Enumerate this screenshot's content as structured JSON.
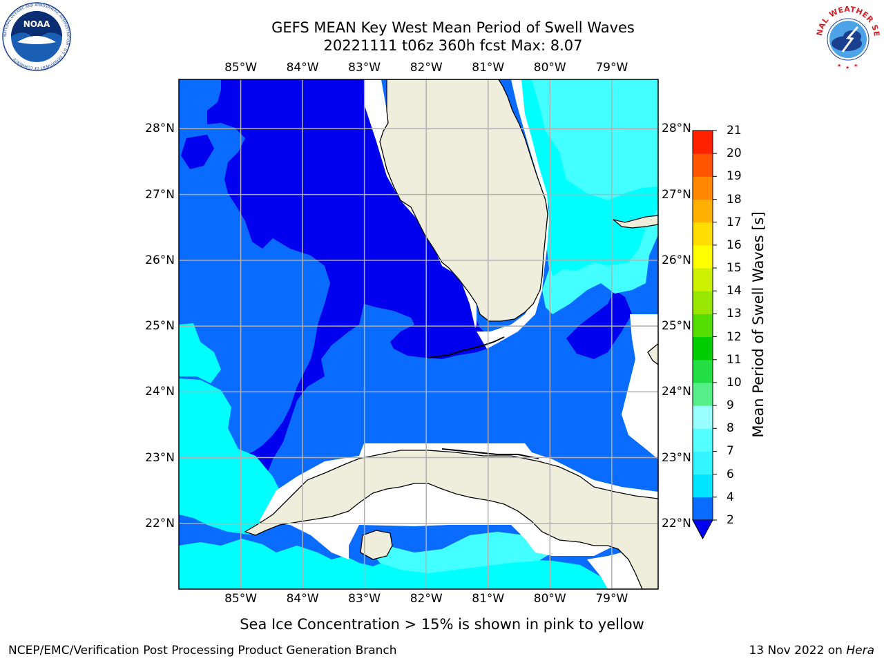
{
  "title": {
    "line1": "GEFS MEAN Key West Mean Period of Swell Waves",
    "line2": "20221111 t06z 360h fcst   Max: 8.07"
  },
  "map": {
    "lon_range": [
      -86.0,
      -78.25
    ],
    "lat_range": [
      21.0,
      28.75
    ],
    "lon_ticks": [
      "85°W",
      "84°W",
      "83°W",
      "82°W",
      "81°W",
      "80°W",
      "79°W"
    ],
    "lat_ticks": [
      "28°N",
      "27°N",
      "26°N",
      "25°N",
      "24°N",
      "23°N",
      "22°N"
    ],
    "land_color": "#efeedd",
    "coast_color": "#000000",
    "grid_color": "#b0b0b0"
  },
  "colorbar": {
    "label": "Mean Period of Swell Waves [s]",
    "levels": [
      "2",
      "4",
      "6",
      "7",
      "8",
      "9",
      "10",
      "11",
      "12",
      "13",
      "14",
      "15",
      "16",
      "17",
      "18",
      "19",
      "20",
      "21"
    ],
    "colors": [
      "#0a6bff",
      "#00e5ff",
      "#33f4ff",
      "#55ffff",
      "#99ffff",
      "#55ee88",
      "#22dd44",
      "#00cc00",
      "#55dd00",
      "#99e600",
      "#ccf000",
      "#ffff00",
      "#ffdd00",
      "#ffb000",
      "#ff8800",
      "#ff5500",
      "#ff2200"
    ],
    "under_color": "#0000ee"
  },
  "legend_colors": {
    "dark_blue": "#0000ee",
    "mid_blue": "#0a6bff",
    "cyan": "#00ffff",
    "light_cyan": "#44ffff"
  },
  "logos": {
    "left": "noaa-logo",
    "right": "nws-logo",
    "left_text": "NOAA",
    "left_ring_text": "NATIONAL OCEANIC AND ATMOSPHERIC ADMINISTRATION · U.S. DEPARTMENT OF COMMERCE",
    "right_ring_text": "NATIONAL WEATHER SERVICE"
  },
  "notes": {
    "ice": "Sea Ice Concentration > 15% is shown in pink to yellow"
  },
  "footer": {
    "left": "NCEP/EMC/Verification Post Processing Product Generation Branch",
    "date": "13 Nov 2022 on",
    "host": "Hera"
  }
}
